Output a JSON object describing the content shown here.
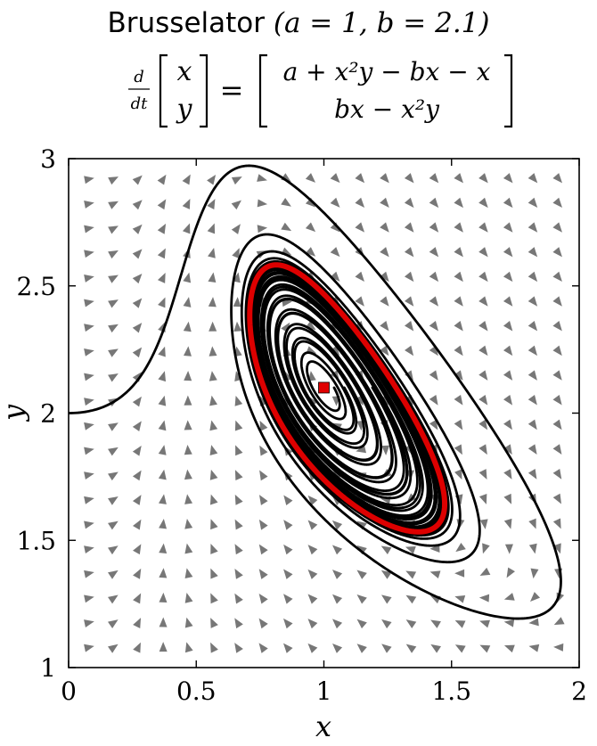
{
  "title": {
    "name": "Brusselator",
    "params": "(a = 1, b = 2.1)"
  },
  "equation": {
    "lhs_operator_num": "d",
    "lhs_operator_den": "dt",
    "lhs_vector": [
      "x",
      "y"
    ],
    "equals": "=",
    "rhs_vector": [
      "a + x²y − bx − x",
      "bx − x²y"
    ]
  },
  "chart_data": {
    "type": "line",
    "model": {
      "a": 1,
      "b": 2.1
    },
    "xlabel": "x",
    "ylabel": "y",
    "xlim": [
      0,
      2
    ],
    "ylim": [
      1,
      3
    ],
    "xticks": [
      "0",
      "0.5",
      "1",
      "1.5",
      "2"
    ],
    "yticks": [
      "1",
      "1.5",
      "2",
      "2.5",
      "3"
    ],
    "xtick_values": [
      0,
      0.5,
      1,
      1.5,
      2
    ],
    "ytick_values": [
      1,
      1.5,
      2,
      2.5,
      3
    ],
    "vector_field": {
      "x_range": [
        0.08,
        1.92
      ],
      "y_range": [
        1.08,
        2.92
      ],
      "nx": 20,
      "ny": 20,
      "color": "#777777"
    },
    "fixed_point": {
      "x": 1,
      "y": 2.1,
      "color": "#e00000"
    },
    "limit_cycle": {
      "color": "#dd0000"
    },
    "trajectory_color": "#000000",
    "trajectories": [
      {
        "x0": 0.0,
        "y0": 2.0,
        "t_max": 60
      },
      {
        "x0": 1.04,
        "y0": 2.1,
        "t_max": 40
      },
      {
        "x0": 1.08,
        "y0": 2.1,
        "t_max": 40
      },
      {
        "x0": 1.13,
        "y0": 2.1,
        "t_max": 40
      },
      {
        "x0": 1.19,
        "y0": 2.1,
        "t_max": 40
      },
      {
        "x0": 1.25,
        "y0": 2.1,
        "t_max": 40
      }
    ]
  }
}
